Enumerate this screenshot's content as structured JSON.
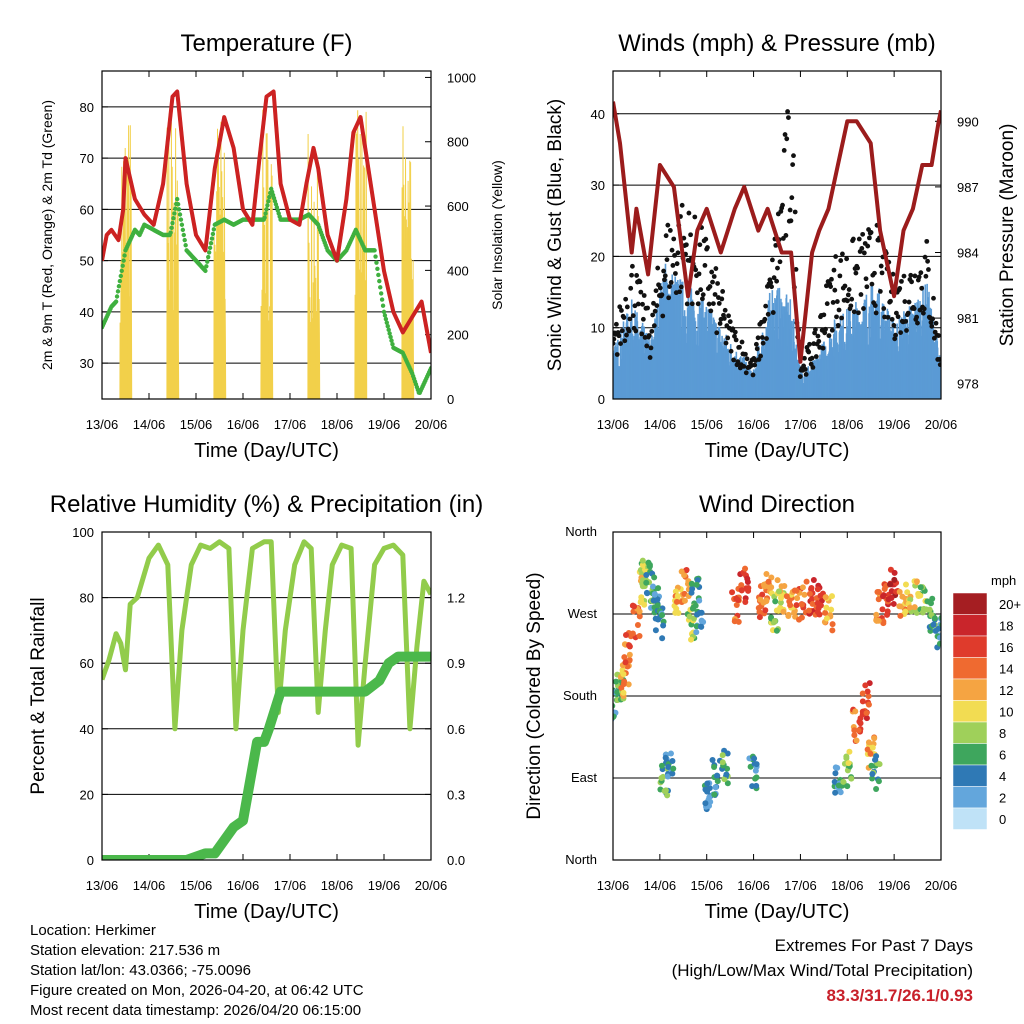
{
  "info": {
    "location": "Location: Herkimer",
    "elevation": "Station elevation: 217.536 m",
    "latlon": "Station lat/lon: 43.0366; -75.0096",
    "created": "Figure created on Mon, 2026-04-20, at 06:42 UTC",
    "recent": "Most recent data timestamp: 2026/04/20 06:15:00"
  },
  "extremes": {
    "title": "Extremes For Past 7 Days",
    "subtitle": "(High/Low/Max Wind/Total Precipitation)",
    "values": "83.3/31.7/26.1/0.93"
  },
  "chart_data": [
    {
      "id": "temperature",
      "type": "line",
      "title": "Temperature (F)",
      "xlabel": "Time (Day/UTC)",
      "ylabel": "2m & 9m T (Red, Orange) & 2m Td (Green)",
      "ylabel_right": "Solar Insolation (Yellow)",
      "x_ticks": [
        "13/06",
        "14/06",
        "15/06",
        "16/06",
        "17/06",
        "18/06",
        "19/06",
        "20/06"
      ],
      "xlim": [
        0,
        7
      ],
      "ylim": [
        23,
        87
      ],
      "y_ticks": [
        30,
        40,
        50,
        60,
        70,
        80
      ],
      "ylim_right": [
        0,
        1020
      ],
      "y_ticks_right": [
        0,
        200,
        400,
        600,
        800,
        1000
      ],
      "grid": true,
      "series": [
        {
          "name": "2m T",
          "color": "#cc2222",
          "x": [
            0,
            0.1,
            0.2,
            0.35,
            0.45,
            0.5,
            0.7,
            0.9,
            1.1,
            1.3,
            1.5,
            1.6,
            1.8,
            2.0,
            2.2,
            2.4,
            2.6,
            2.8,
            3.0,
            3.2,
            3.35,
            3.5,
            3.65,
            3.8,
            4.0,
            4.2,
            4.35,
            4.5,
            4.6,
            4.8,
            5.0,
            5.2,
            5.35,
            5.5,
            5.6,
            5.8,
            6.0,
            6.2,
            6.4,
            6.6,
            6.8,
            7.0
          ],
          "values": [
            50,
            55,
            56,
            54,
            60,
            70,
            62,
            59,
            57,
            65,
            82,
            83,
            65,
            55,
            52,
            68,
            78,
            72,
            60,
            57,
            70,
            82,
            83,
            65,
            58,
            57,
            65,
            72,
            68,
            55,
            50,
            62,
            75,
            78,
            72,
            60,
            48,
            40,
            36,
            39,
            42,
            32
          ]
        },
        {
          "name": "Td",
          "color": "#3fb03f",
          "x": [
            0,
            0.2,
            0.3,
            0.5,
            0.7,
            0.8,
            0.9,
            1.1,
            1.3,
            1.45,
            1.6,
            1.8,
            2.0,
            2.2,
            2.4,
            2.6,
            2.8,
            3.0,
            3.2,
            3.45,
            3.6,
            3.8,
            4.0,
            4.2,
            4.4,
            4.6,
            4.8,
            5.0,
            5.2,
            5.4,
            5.6,
            5.8,
            6.0,
            6.2,
            6.4,
            6.6,
            6.75,
            7.0
          ],
          "values": [
            37,
            41,
            42,
            52,
            56,
            55,
            57,
            56,
            55,
            55,
            62,
            52,
            50,
            48,
            57,
            58,
            57,
            58,
            58,
            58,
            64,
            58,
            58,
            58,
            59,
            57,
            52,
            50,
            52,
            56,
            52,
            52,
            40,
            33,
            32,
            28,
            24,
            29
          ]
        },
        {
          "name": "Solar Insolation",
          "color": "#f2d04a",
          "axis": "right",
          "values": [
            0,
            950,
            0,
            950,
            0,
            950,
            0,
            950,
            0,
            950,
            0,
            950,
            0,
            900
          ]
        }
      ]
    },
    {
      "id": "winds",
      "type": "scatter",
      "title": "Winds (mph) & Pressure (mb)",
      "xlabel": "Time (Day/UTC)",
      "ylabel": "Sonic Wind & Gust (Blue, Black)",
      "ylabel_right": "Station Pressure (Maroon)",
      "x_ticks": [
        "13/06",
        "14/06",
        "15/06",
        "16/06",
        "17/06",
        "18/06",
        "19/06",
        "20/06"
      ],
      "xlim": [
        0,
        7
      ],
      "ylim": [
        0,
        46
      ],
      "y_ticks": [
        0,
        10,
        20,
        30,
        40
      ],
      "ylim_right": [
        977.3,
        992.3
      ],
      "y_ticks_right": [
        978,
        981,
        984,
        987,
        990
      ],
      "grid": true,
      "series": [
        {
          "name": "Wind",
          "color": "#5b9bd5",
          "x": [
            0,
            0.4,
            0.8,
            1.1,
            1.5,
            2.0,
            2.5,
            3.0,
            3.4,
            3.8,
            4.0,
            4.3,
            4.7,
            5.2,
            5.6,
            6.0,
            6.4,
            6.7,
            7.0
          ],
          "values": [
            5,
            10,
            6,
            14,
            12,
            10,
            6,
            3,
            12,
            10,
            3,
            4,
            8,
            10,
            12,
            8,
            10,
            12,
            4
          ]
        },
        {
          "name": "Gust",
          "color": "#111111",
          "x": [
            0,
            0.4,
            0.8,
            1.1,
            1.5,
            2.0,
            2.5,
            3.0,
            3.4,
            3.8,
            4.0,
            4.3,
            4.7,
            5.2,
            5.6,
            6.0,
            6.4,
            6.7,
            7.0
          ],
          "values": [
            8,
            18,
            10,
            22,
            25,
            20,
            10,
            5,
            18,
            40,
            5,
            8,
            18,
            20,
            22,
            15,
            18,
            20,
            6
          ]
        },
        {
          "name": "Pressure",
          "color": "#9b1c1c",
          "axis": "right",
          "x": [
            0,
            0.15,
            0.4,
            0.5,
            0.75,
            1.0,
            1.3,
            1.6,
            1.8,
            2.0,
            2.3,
            2.6,
            2.8,
            3.1,
            3.3,
            3.6,
            3.8,
            4.0,
            4.25,
            4.4,
            4.6,
            4.8,
            5.0,
            5.2,
            5.5,
            5.7,
            6.0,
            6.2,
            6.4,
            6.6,
            6.8,
            6.95,
            7.0
          ],
          "values": [
            990.9,
            989,
            984,
            986,
            983,
            988,
            987,
            982,
            985,
            986,
            984,
            986,
            987,
            985,
            986,
            984,
            984,
            979,
            984,
            985,
            986,
            988,
            990,
            990,
            989,
            985,
            982,
            985,
            986,
            988,
            988,
            990,
            990.5
          ]
        }
      ]
    },
    {
      "id": "humidity",
      "type": "line",
      "title": "Relative Humidity (%) & Precipitation (in)",
      "xlabel": "Time (Day/UTC)",
      "ylabel": "Percent & Total Rainfall",
      "x_ticks": [
        "13/06",
        "14/06",
        "15/06",
        "16/06",
        "17/06",
        "18/06",
        "19/06",
        "20/06"
      ],
      "xlim": [
        0,
        7
      ],
      "ylim": [
        0,
        100
      ],
      "y_ticks": [
        0,
        20,
        40,
        60,
        80,
        100
      ],
      "ylim_right": [
        0,
        1.5
      ],
      "y_ticks_right": [
        "0.0",
        "0.3",
        "0.6",
        "0.9",
        "1.2"
      ],
      "grid": true,
      "series": [
        {
          "name": "RH",
          "color": "#92cc4b",
          "x": [
            0,
            0.15,
            0.3,
            0.4,
            0.5,
            0.6,
            0.75,
            1.0,
            1.2,
            1.4,
            1.55,
            1.7,
            1.9,
            2.1,
            2.3,
            2.5,
            2.7,
            2.85,
            3.0,
            3.2,
            3.45,
            3.6,
            3.75,
            3.9,
            4.1,
            4.3,
            4.45,
            4.6,
            4.75,
            4.9,
            5.1,
            5.3,
            5.45,
            5.6,
            5.8,
            6.0,
            6.2,
            6.4,
            6.55,
            6.7,
            6.85,
            7.0
          ],
          "values": [
            55,
            61,
            69,
            66,
            58,
            78,
            80,
            92,
            96,
            90,
            40,
            70,
            90,
            96,
            95,
            97,
            95,
            40,
            70,
            95,
            97,
            97,
            45,
            70,
            90,
            97,
            95,
            45,
            70,
            90,
            96,
            95,
            35,
            60,
            90,
            95,
            96,
            93,
            40,
            65,
            85,
            81
          ]
        },
        {
          "name": "Precipitation",
          "color": "#4bb84b",
          "axis": "right",
          "x": [
            0,
            1.8,
            2.2,
            2.4,
            2.8,
            3.0,
            3.3,
            3.45,
            3.55,
            3.8,
            4.6,
            4.9,
            5.0,
            5.6,
            5.9,
            6.1,
            6.3,
            7.0
          ],
          "values": [
            0,
            0,
            0.03,
            0.03,
            0.15,
            0.18,
            0.54,
            0.54,
            0.6,
            0.77,
            0.77,
            0.77,
            0.77,
            0.77,
            0.82,
            0.9,
            0.93,
            0.93
          ]
        }
      ]
    },
    {
      "id": "direction",
      "type": "scatter",
      "title": "Wind Direction",
      "xlabel": "Time (Day/UTC)",
      "ylabel": "Direction (Colored By Speed)",
      "x_ticks": [
        "13/06",
        "14/06",
        "15/06",
        "16/06",
        "17/06",
        "18/06",
        "19/06",
        "20/06"
      ],
      "xlim": [
        0,
        7
      ],
      "y_ticks": [
        "North",
        "East",
        "South",
        "West",
        "North"
      ],
      "ylim": [
        0,
        360
      ],
      "grid": true,
      "legend_title": "mph",
      "legend_labels": [
        "20+",
        "18",
        "16",
        "14",
        "12",
        "10",
        "8",
        "6",
        "4",
        "2",
        "0"
      ],
      "legend_colors": [
        "#a51e22",
        "#c9252b",
        "#df3b2c",
        "#ef6a30",
        "#f5a442",
        "#f2dc52",
        "#9fd05a",
        "#3ea65d",
        "#2f79b5",
        "#63a6dc",
        "#bfe2f7"
      ],
      "series": [
        {
          "name": "Direction",
          "x": [
            0.05,
            0.15,
            0.25,
            0.3,
            0.5,
            0.6,
            0.7,
            0.8,
            0.9,
            1.0,
            1.1,
            1.2,
            1.4,
            1.55,
            1.65,
            1.75,
            1.85,
            2.0,
            2.2,
            2.4,
            2.6,
            2.8,
            3.0,
            3.2,
            3.3,
            3.45,
            3.6,
            3.8,
            4.0,
            4.2,
            4.4,
            4.6,
            4.8,
            5.0,
            5.2,
            5.4,
            5.5,
            5.6,
            5.7,
            5.8,
            6.0,
            6.2,
            6.4,
            6.6,
            6.8,
            6.95
          ],
          "values": [
            170,
            185,
            200,
            230,
            260,
            300,
            310,
            300,
            290,
            260,
            90,
            100,
            285,
            300,
            260,
            290,
            270,
            75,
            90,
            100,
            280,
            300,
            95,
            285,
            300,
            270,
            290,
            280,
            280,
            290,
            285,
            270,
            90,
            100,
            150,
            175,
            120,
            95,
            280,
            285,
            300,
            285,
            290,
            280,
            270,
            250
          ],
          "speeds": [
            4,
            8,
            12,
            14,
            14,
            10,
            8,
            6,
            4,
            4,
            6,
            4,
            12,
            14,
            8,
            6,
            4,
            4,
            4,
            6,
            14,
            16,
            4,
            14,
            12,
            8,
            10,
            12,
            14,
            16,
            16,
            12,
            4,
            8,
            14,
            16,
            12,
            6,
            14,
            16,
            18,
            12,
            10,
            8,
            6,
            4
          ]
        }
      ]
    }
  ]
}
